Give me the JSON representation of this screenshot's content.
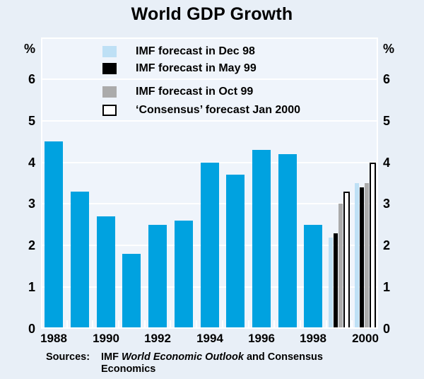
{
  "title": "World GDP Growth",
  "axis": {
    "unit_label": "%",
    "y_tick_labels": [
      "0",
      "1",
      "2",
      "3",
      "4",
      "5",
      "6"
    ]
  },
  "legend": [
    {
      "label": "IMF forecast in Dec 98",
      "color": "#BEE0F5",
      "border": "#BEE0F5"
    },
    {
      "label": "IMF forecast in May 99",
      "color": "#000000",
      "border": "#000000"
    },
    {
      "label": "IMF forecast in Oct 99",
      "color": "#ABABAB",
      "border": "#ABABAB"
    },
    {
      "label": "‘Consensus’ forecast Jan 2000",
      "color": "#FFFFFF",
      "border": "#000000"
    }
  ],
  "chart_data": {
    "type": "bar",
    "title": "World GDP Growth",
    "ylabel": "%",
    "ylim": [
      0,
      7
    ],
    "grid": true,
    "legend_position": "top-left-inside",
    "categories": [
      "1988",
      "1989",
      "1990",
      "1991",
      "1992",
      "1993",
      "1994",
      "1995",
      "1996",
      "1997",
      "1998",
      "1999",
      "2000"
    ],
    "x_tick_labels": [
      "1988",
      "1990",
      "1992",
      "1994",
      "1996",
      "1998",
      "2000"
    ],
    "actual_series": {
      "name": "World GDP growth",
      "years": [
        "1988",
        "1989",
        "1990",
        "1991",
        "1992",
        "1993",
        "1994",
        "1995",
        "1996",
        "1997",
        "1998"
      ],
      "values": [
        4.5,
        3.3,
        2.7,
        1.8,
        2.5,
        2.6,
        4.0,
        3.7,
        4.3,
        4.2,
        2.5
      ]
    },
    "forecast_categories": [
      "1999",
      "2000"
    ],
    "forecast_series": [
      {
        "name": "IMF forecast in Dec 98",
        "values": [
          2.2,
          3.5
        ]
      },
      {
        "name": "IMF forecast in May 99",
        "values": [
          2.3,
          3.4
        ]
      },
      {
        "name": "IMF forecast in Oct 99",
        "values": [
          3.0,
          3.5
        ]
      },
      {
        "name": "‘Consensus’ forecast Jan 2000",
        "values": [
          3.3,
          4.0
        ]
      }
    ]
  },
  "colors": {
    "actual_bar": "#00A2E0",
    "forecast_dec98": "#BEE0F5",
    "forecast_may99": "#000000",
    "forecast_oct99": "#ABABAB",
    "forecast_consensus_fill": "#FFFFFF",
    "forecast_consensus_border": "#000000",
    "page_background": "#E8EFF7",
    "plot_background": "#EFF4FB",
    "gridline": "#FFFFFF",
    "text": "#000000"
  },
  "sources": {
    "label": "Sources:",
    "part1": "IMF ",
    "italic": "World Economic Outlook",
    "part2": " and Consensus",
    "line2": "Economics"
  }
}
